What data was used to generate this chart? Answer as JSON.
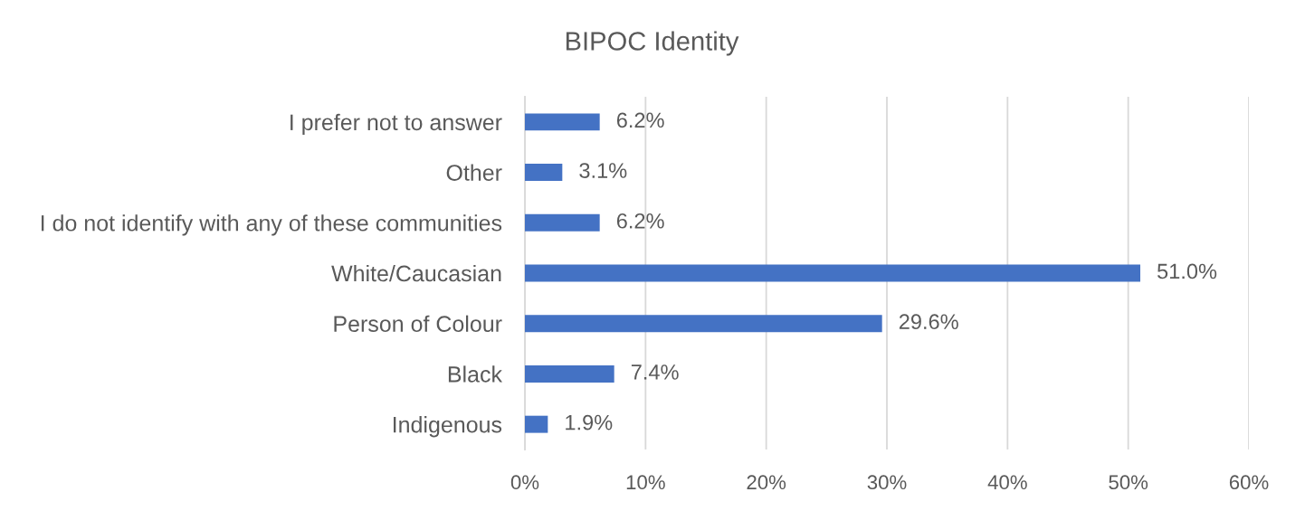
{
  "chart_data": {
    "type": "bar",
    "orientation": "horizontal",
    "title": "BIPOC Identity",
    "categories": [
      "I prefer not to answer",
      "Other",
      "I do not identify with any of these communities",
      "White/Caucasian",
      "Person of Colour",
      "Black",
      "Indigenous"
    ],
    "values": [
      6.2,
      3.1,
      6.2,
      51.0,
      29.6,
      7.4,
      1.9
    ],
    "value_labels": [
      "6.2%",
      "3.1%",
      "6.2%",
      "51.0%",
      "29.6%",
      "7.4%",
      "1.9%"
    ],
    "color": "#4472c4",
    "xlim": [
      0,
      60
    ],
    "xticks": [
      {
        "value": 0,
        "label": "0%"
      },
      {
        "value": 10,
        "label": "10%"
      },
      {
        "value": 20,
        "label": "20%"
      },
      {
        "value": 30,
        "label": "30%"
      },
      {
        "value": 40,
        "label": "40%"
      },
      {
        "value": 50,
        "label": "50%"
      },
      {
        "value": 60,
        "label": "60%"
      }
    ],
    "grid": "x"
  }
}
